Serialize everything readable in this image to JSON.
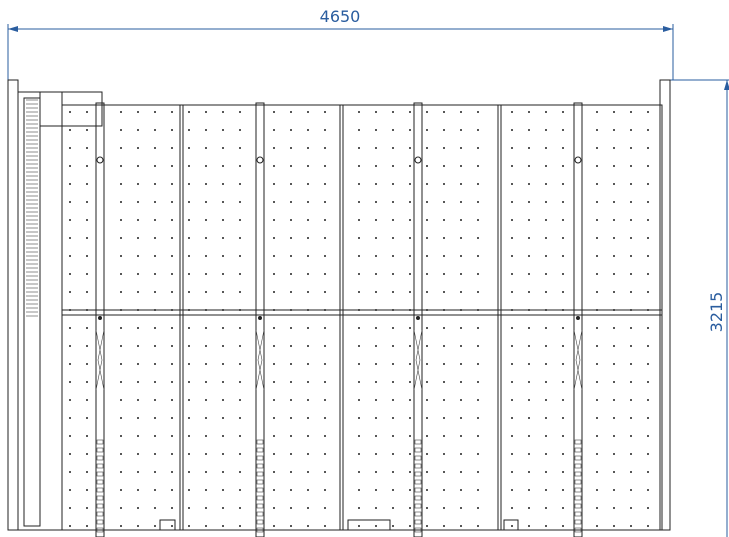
{
  "dimensions": {
    "width": 4650,
    "height": 3215
  }
}
